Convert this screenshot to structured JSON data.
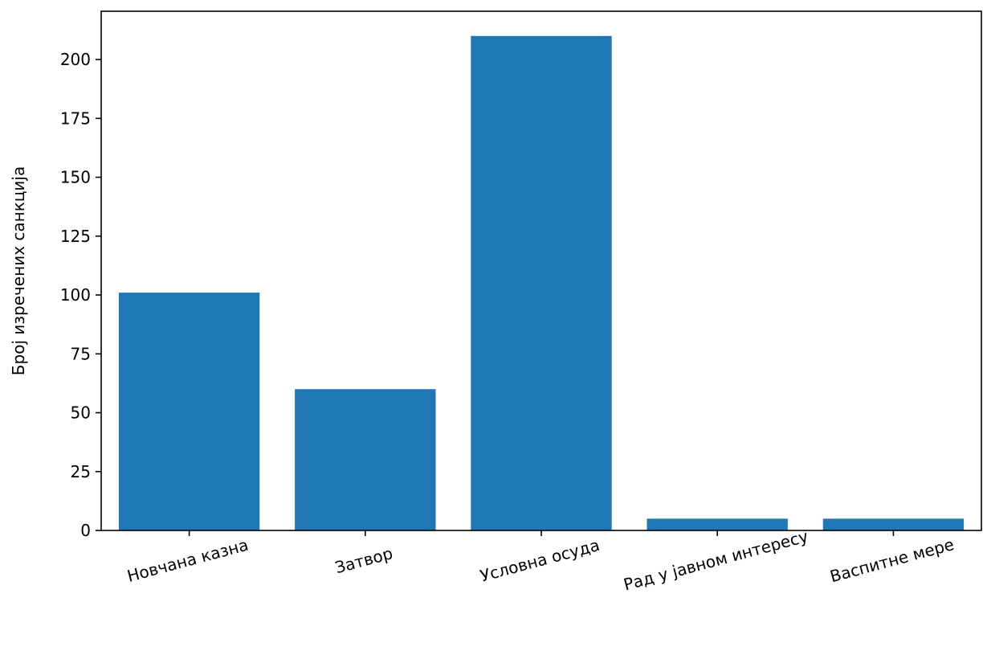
{
  "chart_data": {
    "type": "bar",
    "title": "",
    "xlabel": "",
    "ylabel": "Број изречених санкција",
    "categories": [
      "Новчана казна",
      "Затвор",
      "Условна осуда",
      "Рад у јавном интересу",
      "Васпитне мере"
    ],
    "values": [
      101,
      60,
      210,
      5,
      5
    ],
    "ylim": [
      0,
      220.5
    ],
    "yticks": [
      0,
      25,
      50,
      75,
      100,
      125,
      150,
      175,
      200
    ],
    "bar_color": "#1f77b4",
    "grid": false,
    "legend": "none"
  }
}
